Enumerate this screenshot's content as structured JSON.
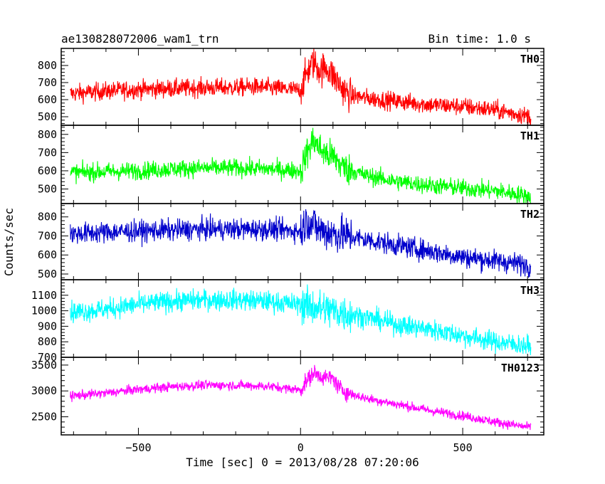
{
  "header": {
    "title": "ae130828072006_wam1_trn",
    "bin_time": "Bin time: 1.0 s"
  },
  "xlabel": "Time [sec] 0 = 2013/08/28 07:20:06",
  "ylabel": "Counts/sec",
  "chart_data": {
    "type": "line",
    "title": "ae130828072006_wam1_trn",
    "xlabel": "Time [sec] 0 = 2013/08/28 07:20:06",
    "ylabel": "Counts/sec",
    "xlim": [
      -738,
      750
    ],
    "xticks": [
      -500,
      0,
      500
    ],
    "grid": false,
    "panels": [
      {
        "name": "TH0",
        "color": "#ff0000",
        "ylim": [
          450,
          900
        ],
        "yticks": [
          500,
          600,
          700,
          800
        ],
        "noise": 38,
        "x": [
          -710,
          -600,
          -500,
          -400,
          -300,
          -200,
          -150,
          -100,
          0,
          20,
          40,
          60,
          80,
          100,
          120,
          140,
          160,
          200,
          300,
          400,
          500,
          600,
          710
        ],
        "y": [
          635,
          650,
          660,
          665,
          670,
          670,
          675,
          670,
          655,
          760,
          820,
          770,
          790,
          740,
          690,
          640,
          625,
          610,
          590,
          570,
          560,
          540,
          500
        ]
      },
      {
        "name": "TH1",
        "color": "#00ff00",
        "ylim": [
          420,
          850
        ],
        "yticks": [
          500,
          600,
          700,
          800
        ],
        "noise": 35,
        "x": [
          -710,
          -600,
          -500,
          -400,
          -300,
          -200,
          -100,
          0,
          20,
          40,
          60,
          80,
          100,
          120,
          140,
          160,
          200,
          300,
          400,
          500,
          600,
          710
        ],
        "y": [
          590,
          595,
          600,
          610,
          615,
          615,
          610,
          600,
          700,
          770,
          720,
          690,
          680,
          640,
          610,
          600,
          575,
          540,
          520,
          505,
          490,
          460
        ]
      },
      {
        "name": "TH2",
        "color": "#0000cc",
        "ylim": [
          470,
          870
        ],
        "yticks": [
          500,
          600,
          700,
          800
        ],
        "noise": 40,
        "x": [
          -710,
          -600,
          -500,
          -400,
          -300,
          -200,
          -100,
          0,
          20,
          40,
          60,
          100,
          150,
          200,
          300,
          400,
          500,
          600,
          710
        ],
        "y": [
          710,
          720,
          725,
          730,
          735,
          735,
          735,
          725,
          780,
          760,
          730,
          715,
          700,
          680,
          650,
          620,
          590,
          570,
          545
        ]
      },
      {
        "name": "TH3",
        "color": "#00ffff",
        "ylim": [
          700,
          1200
        ],
        "yticks": [
          700,
          800,
          900,
          1000,
          1100
        ],
        "noise": 48,
        "x": [
          -710,
          -600,
          -500,
          -400,
          -300,
          -200,
          -100,
          0,
          100,
          200,
          300,
          400,
          500,
          600,
          710
        ],
        "y": [
          990,
          1010,
          1040,
          1060,
          1070,
          1070,
          1060,
          1040,
          1000,
          960,
          910,
          880,
          840,
          800,
          770
        ]
      },
      {
        "name": "TH0123",
        "color": "#ff00ff",
        "ylim": [
          2150,
          3650
        ],
        "yticks": [
          2500,
          3000,
          3500
        ],
        "noise": 65,
        "x": [
          -710,
          -600,
          -500,
          -400,
          -300,
          -200,
          -100,
          0,
          20,
          40,
          60,
          80,
          100,
          120,
          150,
          200,
          300,
          400,
          500,
          600,
          710
        ],
        "y": [
          2900,
          2960,
          3030,
          3080,
          3110,
          3110,
          3090,
          3020,
          3200,
          3350,
          3300,
          3250,
          3250,
          3050,
          2950,
          2860,
          2740,
          2620,
          2520,
          2400,
          2290
        ]
      }
    ]
  }
}
